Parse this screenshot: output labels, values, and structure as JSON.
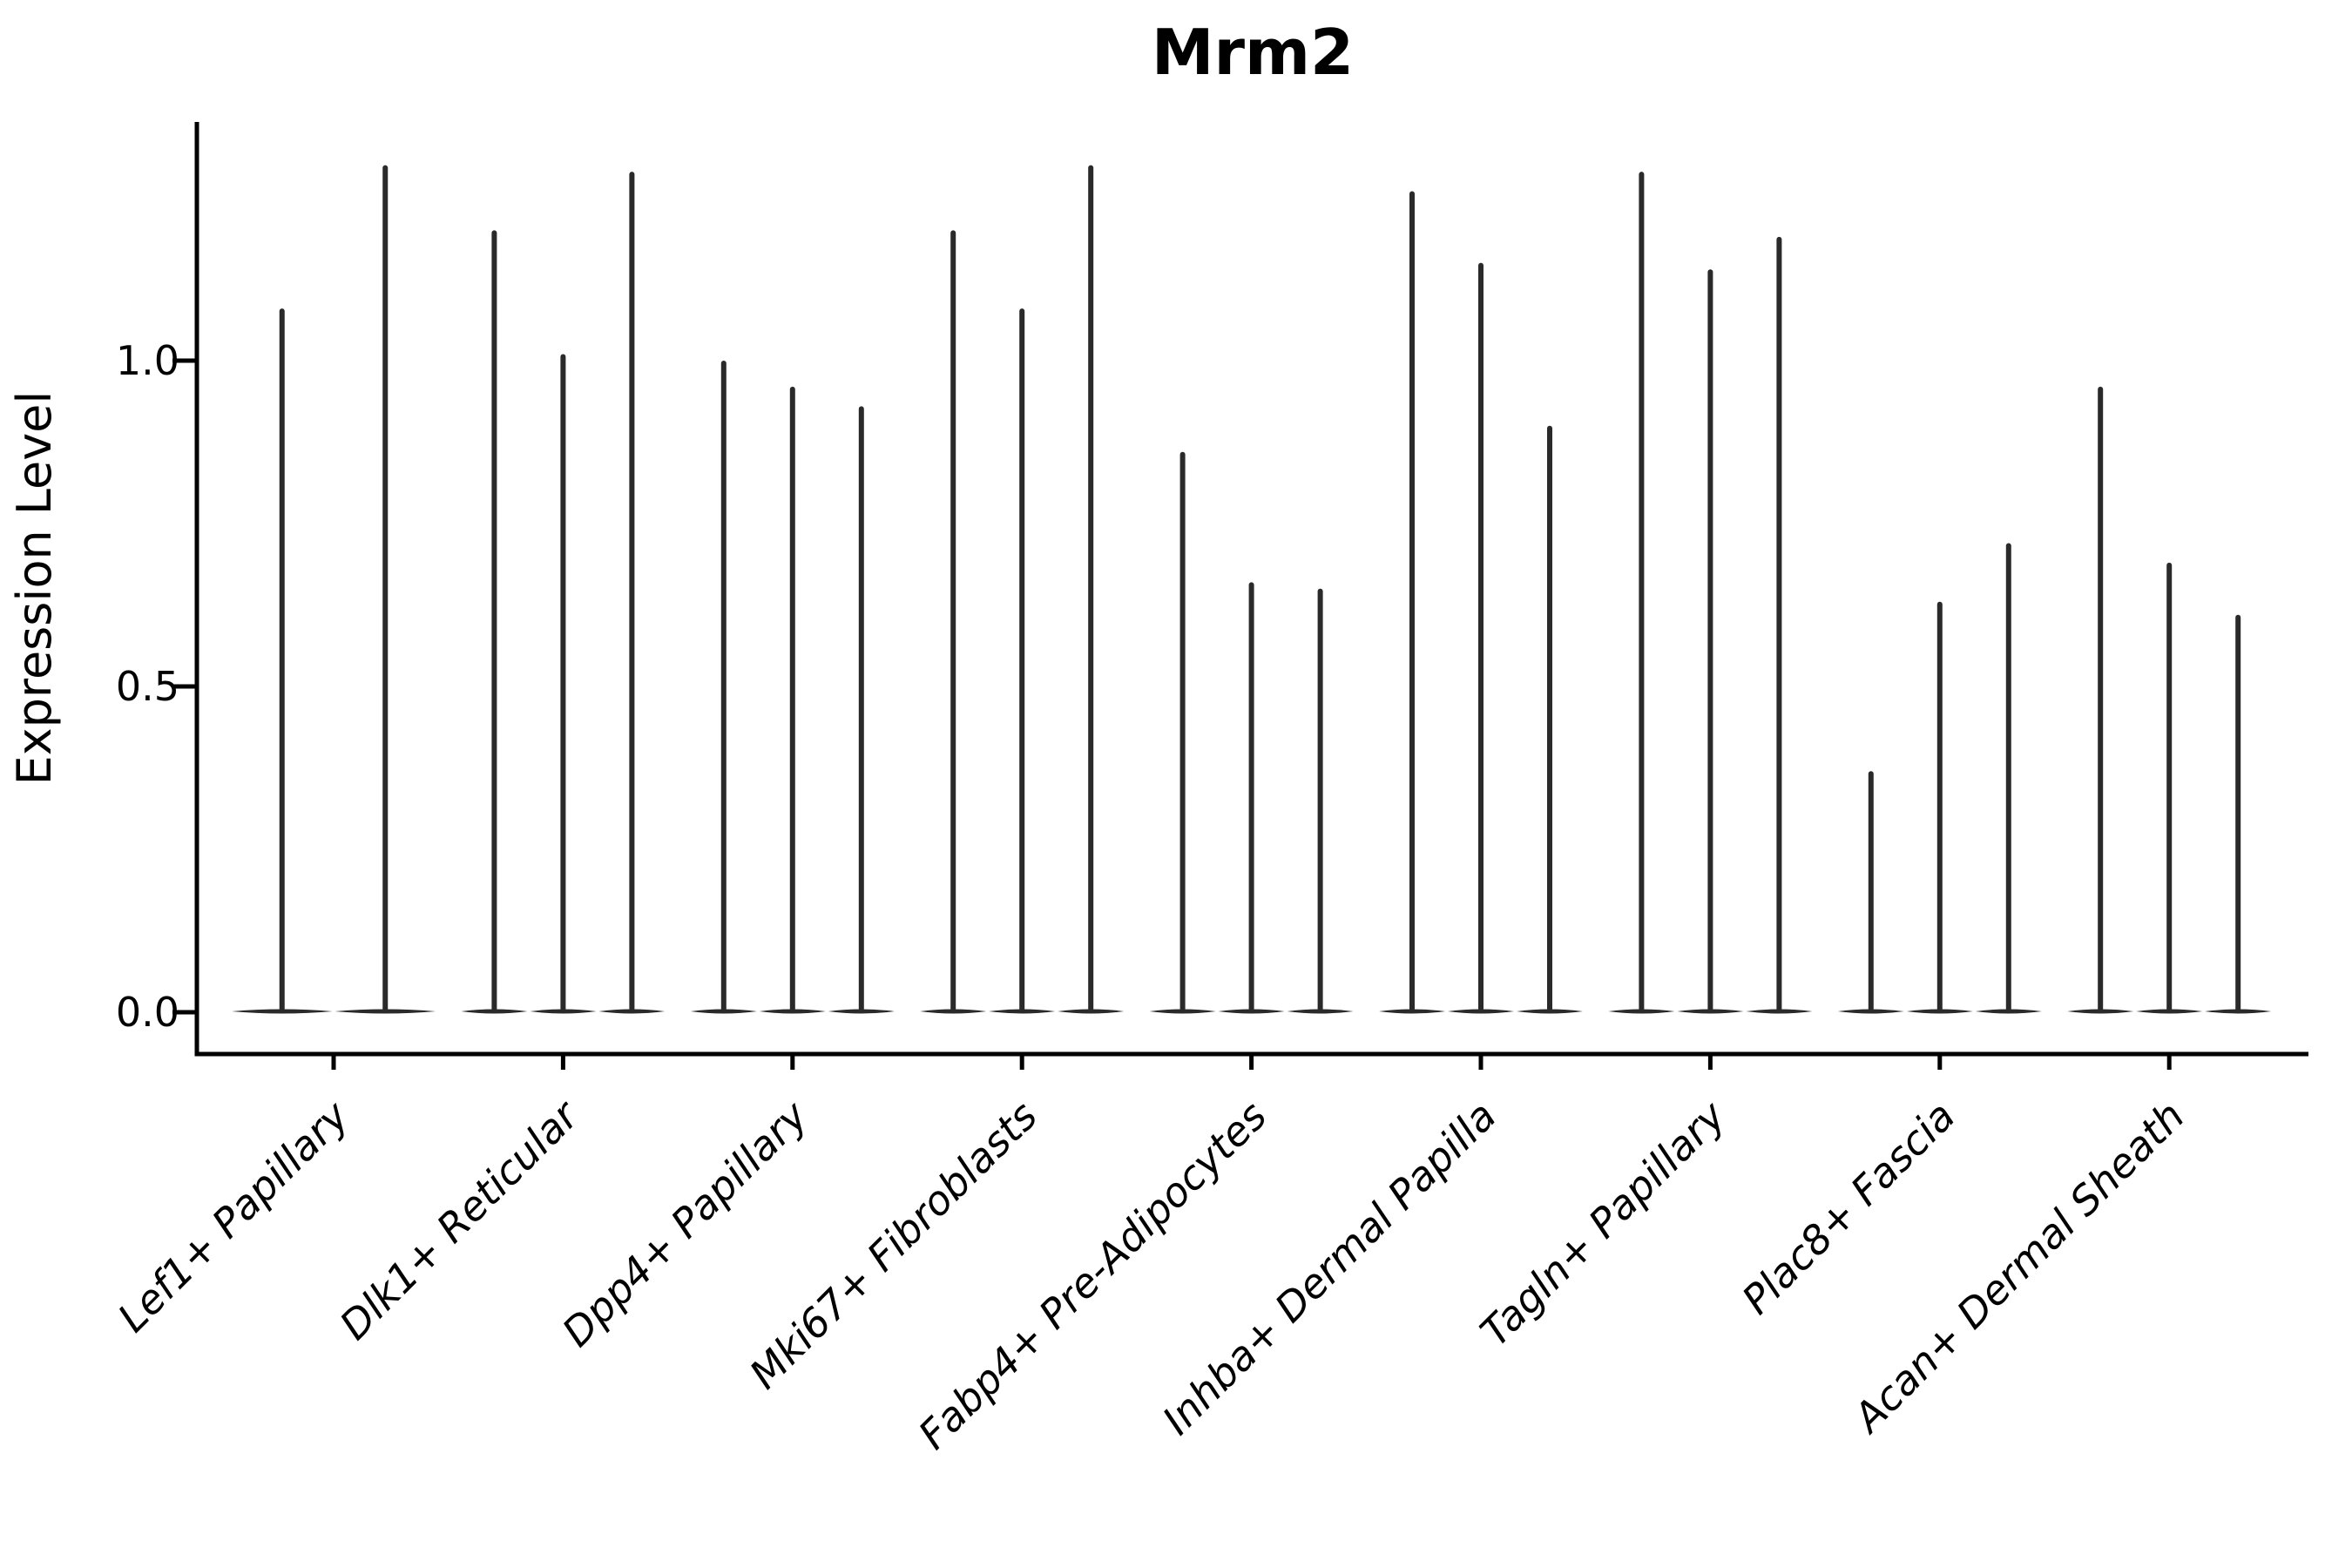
{
  "title": "Mrm2",
  "y_axis": {
    "label": "Expression Level",
    "ticks": [
      {
        "label": "0.0",
        "value": 0.0
      },
      {
        "label": "0.5",
        "value": 0.5
      },
      {
        "label": "1.0",
        "value": 1.0
      }
    ]
  },
  "x_axis": {
    "categories": [
      "Lef1+ Papillary",
      "Dlk1+ Reticular",
      "Dpp4+ Papillary",
      "Mki67+ Fibroblasts",
      "Fabp4+ Pre-Adipocytes",
      "Inhba+ Dermal Papilla",
      "Tagln+ Papillary",
      "Plac8+ Fascia",
      "Acan+ Dermal Sheath"
    ]
  },
  "chart_data": {
    "type": "violin",
    "title": "Mrm2",
    "xlabel": "",
    "ylabel": "Expression Level",
    "ylim": [
      -0.06,
      1.37
    ],
    "yticks": [
      0.0,
      0.5,
      1.0
    ],
    "grid": false,
    "legend_position": "none",
    "categories": [
      "Lef1+ Papillary",
      "Dlk1+ Reticular",
      "Dpp4+ Papillary",
      "Mki67+ Fibroblasts",
      "Fabp4+ Pre-Adipocytes",
      "Inhba+ Dermal Papilla",
      "Tagln+ Papillary",
      "Plac8+ Fascia",
      "Acan+ Dermal Sheath"
    ],
    "series": [
      {
        "category": "Lef1+ Papillary",
        "violin_max_values": [
          1.08,
          1.3
        ]
      },
      {
        "category": "Dlk1+ Reticular",
        "violin_max_values": [
          1.2,
          1.01,
          1.29
        ]
      },
      {
        "category": "Dpp4+ Papillary",
        "violin_max_values": [
          1.0,
          0.96,
          0.93
        ]
      },
      {
        "category": "Mki67+ Fibroblasts",
        "violin_max_values": [
          1.2,
          1.08,
          1.3
        ]
      },
      {
        "category": "Fabp4+ Pre-Adipocytes",
        "violin_max_values": [
          0.86,
          0.66,
          0.65
        ]
      },
      {
        "category": "Inhba+ Dermal Papilla",
        "violin_max_values": [
          1.26,
          1.15,
          0.9
        ]
      },
      {
        "category": "Tagln+ Papillary",
        "violin_max_values": [
          1.29,
          1.14,
          1.19
        ]
      },
      {
        "category": "Plac8+ Fascia",
        "violin_max_values": [
          0.37,
          0.63,
          0.72
        ]
      },
      {
        "category": "Acan+ Dermal Sheath",
        "violin_max_values": [
          0.96,
          0.69,
          0.61
        ]
      }
    ],
    "shape_note": "Seurat-style violins: each collapses to a wide flat base at expression 0 with a needle-thin tail rising to its max expression value"
  },
  "style": {
    "violin_color": "#2a2a2a",
    "axis_color": "#000000",
    "text_color": "#000000",
    "background": "#ffffff"
  }
}
